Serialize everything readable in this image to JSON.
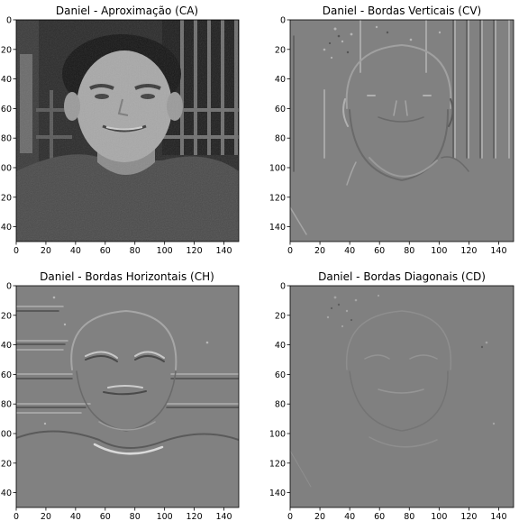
{
  "figure": {
    "panels": [
      {
        "id": "ca",
        "title": "Daniel - Aproximação (CA)",
        "kind": "approximation",
        "x_ticks": [
          "0",
          "20",
          "40",
          "60",
          "80",
          "100",
          "120",
          "140"
        ],
        "y_ticks": [
          "0",
          "20",
          "40",
          "60",
          "80",
          "100",
          "120",
          "140"
        ],
        "x_range": [
          0,
          150
        ],
        "y_range": [
          0,
          150
        ]
      },
      {
        "id": "cv",
        "title": "Daniel - Bordas Verticais (CV)",
        "kind": "vertical-edges",
        "x_ticks": [
          "0",
          "20",
          "40",
          "60",
          "80",
          "100",
          "120",
          "140"
        ],
        "y_ticks": [
          "0",
          "20",
          "40",
          "60",
          "80",
          "100",
          "120",
          "140"
        ],
        "x_range": [
          0,
          150
        ],
        "y_range": [
          0,
          150
        ]
      },
      {
        "id": "ch",
        "title": "Daniel - Bordas Horizontais (CH)",
        "kind": "horizontal-edges",
        "x_ticks": [
          "0",
          "20",
          "40",
          "60",
          "80",
          "100",
          "120",
          "140"
        ],
        "y_ticks": [
          "0",
          "20",
          "40",
          "60",
          "80",
          "100",
          "120",
          "140"
        ],
        "x_range": [
          0,
          150
        ],
        "y_range": [
          0,
          150
        ]
      },
      {
        "id": "cd",
        "title": "Daniel - Bordas Diagonais (CD)",
        "kind": "diagonal-edges",
        "x_ticks": [
          "0",
          "20",
          "40",
          "60",
          "80",
          "100",
          "120",
          "140"
        ],
        "y_ticks": [
          "0",
          "20",
          "40",
          "60",
          "80",
          "100",
          "120",
          "140"
        ],
        "x_range": [
          0,
          150
        ],
        "y_range": [
          0,
          150
        ]
      }
    ],
    "colors": {
      "background": "#ffffff",
      "axis": "#000000",
      "approx_dark": "#1a1a1a",
      "approx_shirt": "#4a4a4a",
      "approx_skin": "#a8a8a8",
      "edge_gray": "#808080"
    }
  }
}
